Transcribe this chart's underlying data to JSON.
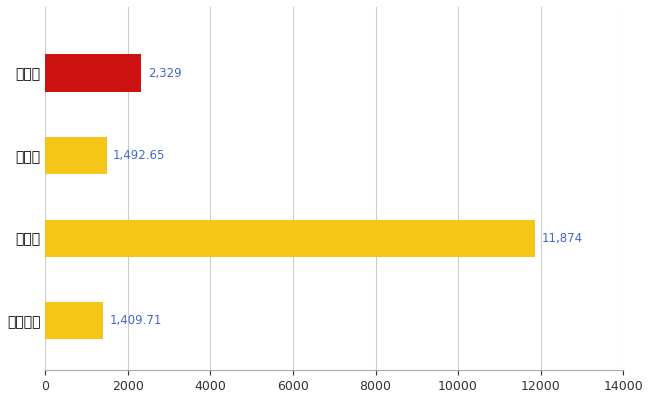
{
  "categories": [
    "全国平均",
    "県最大",
    "県平均",
    "浦安市"
  ],
  "values": [
    1409.71,
    11874,
    1492.65,
    2329
  ],
  "bar_colors": [
    "#F5C518",
    "#F5C518",
    "#F5C518",
    "#CC1111"
  ],
  "value_labels": [
    "1,409.71",
    "11,874",
    "1,492.65",
    "2,329"
  ],
  "xlim": [
    0,
    14000
  ],
  "xticks": [
    0,
    2000,
    4000,
    6000,
    8000,
    10000,
    12000,
    14000
  ],
  "background_color": "#ffffff",
  "grid_color": "#cccccc",
  "label_color": "#4466cc",
  "bar_height": 0.45,
  "figsize": [
    6.5,
    4.0
  ],
  "dpi": 100
}
